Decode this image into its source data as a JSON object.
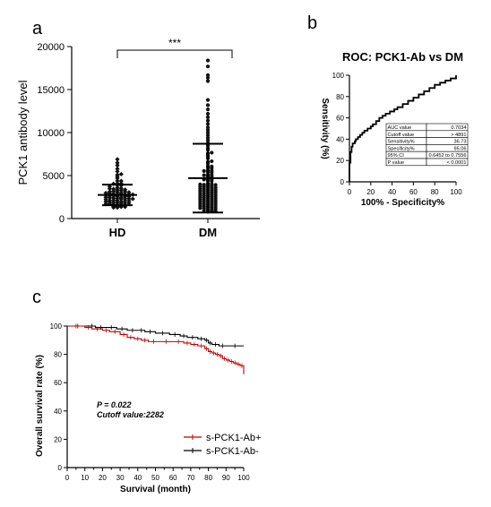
{
  "panels": {
    "a": "a",
    "b": "b",
    "c": "c"
  },
  "chart_data": [
    {
      "panel": "a",
      "type": "scatter",
      "subtype": "dot plot with mean and SD bars",
      "ylabel": "PCK1 antibody level",
      "xlabel": "",
      "categories": [
        "HD",
        "DM"
      ],
      "ylim": [
        0,
        20000
      ],
      "yticks": [
        "0",
        "5000",
        "10000",
        "15000",
        "20000"
      ],
      "significance": "***",
      "series": [
        {
          "category": "HD",
          "mean": 2750,
          "sd_upper": 3950,
          "sd_lower": 1550,
          "points": [
            1100,
            1200,
            1300,
            1350,
            1400,
            1450,
            1500,
            1550,
            1600,
            1650,
            1700,
            1700,
            1750,
            1800,
            1800,
            1850,
            1900,
            1900,
            1950,
            2000,
            2000,
            2050,
            2100,
            2100,
            2150,
            2200,
            2200,
            2250,
            2300,
            2300,
            2350,
            2400,
            2400,
            2450,
            2500,
            2500,
            2550,
            2600,
            2600,
            2650,
            2700,
            2700,
            2750,
            2800,
            2800,
            2850,
            2900,
            2900,
            2950,
            3000,
            3000,
            3050,
            3100,
            3150,
            3200,
            3250,
            3300,
            3350,
            3400,
            3450,
            3500,
            3550,
            3600,
            3700,
            3800,
            3900,
            4000,
            4100,
            4200,
            4300,
            4500,
            4700,
            4900,
            5100,
            5300,
            5600,
            6000,
            6300,
            6700
          ]
        },
        {
          "category": "DM",
          "mean": 4700,
          "sd_upper": 8700,
          "sd_lower": 700,
          "points": [
            600,
            700,
            800,
            900,
            950,
            1000,
            1050,
            1100,
            1150,
            1200,
            1250,
            1300,
            1350,
            1400,
            1450,
            1500,
            1550,
            1600,
            1650,
            1700,
            1750,
            1800,
            1850,
            1900,
            1950,
            2000,
            2050,
            2100,
            2150,
            2200,
            2250,
            2300,
            2350,
            2400,
            2450,
            2500,
            2550,
            2600,
            2650,
            2700,
            2750,
            2800,
            2850,
            2900,
            2950,
            3000,
            3050,
            3100,
            3150,
            3200,
            3250,
            3300,
            3350,
            3400,
            3450,
            3500,
            3550,
            3600,
            3650,
            3700,
            3750,
            3800,
            3850,
            3900,
            3950,
            4000,
            4100,
            4200,
            4300,
            4400,
            4500,
            4600,
            4700,
            4800,
            4900,
            5000,
            5100,
            5200,
            5300,
            5400,
            5500,
            5600,
            5700,
            5800,
            5900,
            6000,
            6200,
            6400,
            6600,
            6800,
            7000,
            7200,
            7400,
            7600,
            7800,
            8000,
            8300,
            8600,
            8900,
            9200,
            9500,
            9800,
            10100,
            10400,
            10800,
            11200,
            11600,
            12000,
            12500,
            13000,
            13600,
            15800,
            16200,
            16500,
            17500,
            18200
          ]
        }
      ]
    },
    {
      "panel": "b",
      "type": "line",
      "title": "ROC: PCK1-Ab vs DM",
      "xlabel": "100% - Specificity%",
      "ylabel": "Sensitivity (%)",
      "xlim": [
        0,
        100
      ],
      "ylim": [
        0,
        100
      ],
      "xticks": [
        "0",
        "20",
        "40",
        "60",
        "80",
        "100"
      ],
      "yticks": [
        "0",
        "20",
        "40",
        "60",
        "80",
        "100"
      ],
      "x": [
        0,
        0,
        1,
        2,
        3,
        5,
        6,
        8,
        10,
        12,
        14,
        17,
        20,
        22,
        25,
        28,
        31,
        34,
        38,
        42,
        45,
        50,
        55,
        60,
        65,
        70,
        75,
        80,
        85,
        90,
        95,
        100
      ],
      "y": [
        0,
        18,
        28,
        33,
        36,
        38,
        40,
        42,
        44,
        46,
        48,
        50,
        52,
        54,
        57,
        60,
        62,
        64,
        66,
        68,
        70,
        73,
        76,
        79,
        82,
        85,
        88,
        91,
        93,
        95,
        97,
        100
      ],
      "stats_table": [
        [
          "AUC value",
          "0.7034"
        ],
        [
          "Cutoff value",
          "> 4891"
        ],
        [
          "Sensitivity%",
          "36.73"
        ],
        [
          "Specificity%",
          "95.06"
        ],
        [
          "95% CI",
          "0.6452 to 0.7556"
        ],
        [
          "P value",
          "< 0.0001"
        ]
      ]
    },
    {
      "panel": "c",
      "type": "line",
      "subtype": "kaplan-meier",
      "xlabel": "Survival (month)",
      "ylabel": "Overall survival rate (%)",
      "xlim": [
        0,
        100
      ],
      "ylim": [
        0,
        100
      ],
      "xticks": [
        "0",
        "10",
        "20",
        "30",
        "40",
        "50",
        "60",
        "70",
        "80",
        "90",
        "100"
      ],
      "yticks": [
        "0",
        "20",
        "40",
        "60",
        "80",
        "100"
      ],
      "annotations": [
        "P = 0.022",
        "Cutoff value:2282"
      ],
      "series": [
        {
          "name": "s-PCK1-Ab+",
          "color": "#c00000",
          "x": [
            0,
            10,
            14,
            20,
            24,
            30,
            34,
            38,
            42,
            46,
            52,
            60,
            66,
            70,
            74,
            78,
            80,
            82,
            84,
            86,
            88,
            90,
            92,
            94,
            96,
            98,
            100
          ],
          "y": [
            100,
            99,
            98,
            97,
            96,
            94,
            92,
            91,
            90,
            89,
            89,
            89,
            88,
            87,
            86,
            84,
            82,
            81,
            80,
            79,
            77,
            76,
            75,
            74,
            73,
            72,
            66
          ]
        },
        {
          "name": "s-PCK1-Ab-",
          "color": "#000000",
          "x": [
            0,
            12,
            16,
            22,
            28,
            34,
            40,
            44,
            50,
            58,
            64,
            68,
            74,
            78,
            80,
            82,
            86,
            90,
            100
          ],
          "y": [
            100,
            100,
            99,
            99,
            98,
            97,
            97,
            96,
            95,
            94,
            93,
            92,
            91,
            90,
            88,
            87,
            86,
            86,
            86
          ]
        }
      ]
    }
  ]
}
